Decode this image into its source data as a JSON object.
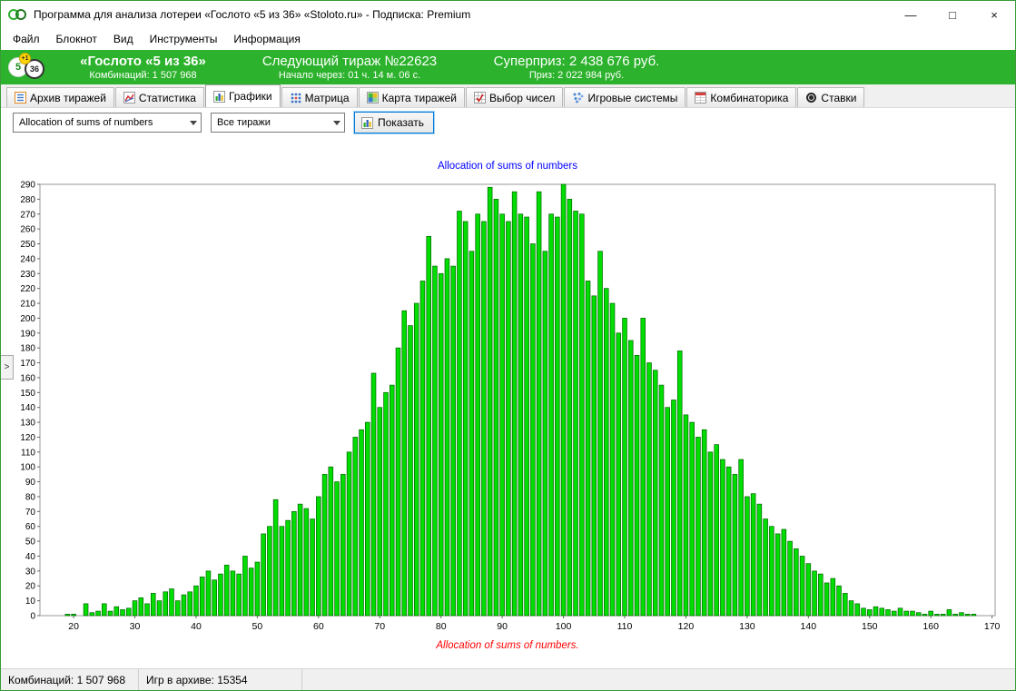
{
  "window": {
    "title": "Программа для анализа лотереи «Гослото «5 из 36» «Stoloto.ru» - Подписка: Premium",
    "controls": {
      "minimize": "—",
      "maximize": "□",
      "close": "×"
    }
  },
  "menubar": {
    "items": [
      "Файл",
      "Блокнот",
      "Вид",
      "Инструменты",
      "Информация"
    ]
  },
  "banner": {
    "logo": {
      "ball1": "5",
      "ball2": "36",
      "badge": "+1"
    },
    "title": "«Гослото «5 из 36»",
    "combinations": "Комбинаций: 1 507 968",
    "next_draw": "Следующий тираж №22623",
    "countdown": "Начало через: 01 ч. 14 м. 06 с.",
    "superprize": "Суперприз: 2 438 676 руб.",
    "prize": "Приз: 2 022 984 руб.",
    "background_color": "#2cb22c"
  },
  "tabs": {
    "active": "Графики",
    "items": [
      {
        "label": "Архив тиражей"
      },
      {
        "label": "Статистика"
      },
      {
        "label": "Графики"
      },
      {
        "label": "Матрица"
      },
      {
        "label": "Карта тиражей"
      },
      {
        "label": "Выбор чисел"
      },
      {
        "label": "Игровые системы"
      },
      {
        "label": "Комбинаторика"
      },
      {
        "label": "Ставки"
      }
    ]
  },
  "controls": {
    "chart_type_value": "Allocation of sums of numbers",
    "draws_filter_value": "Все тиражи",
    "show_button": "Показать"
  },
  "side_panel": {
    "toggle": ">"
  },
  "chart_data": {
    "type": "bar",
    "title": "Allocation of sums of numbers",
    "xlabel": "Allocation of sums of numbers.",
    "ylabel": "",
    "title_color": "#0000ff",
    "xlabel_color": "#ff0000",
    "bar_color": "#00dd00",
    "bar_border": "#006600",
    "x_start": 15,
    "x_end": 170,
    "x_tick_start": 20,
    "x_tick_step": 10,
    "ylim": [
      0,
      290
    ],
    "y_tick_step": 10,
    "grid": false,
    "legend": "none",
    "values": [
      0,
      0,
      0,
      0,
      1,
      1,
      0,
      8,
      2,
      3,
      8,
      3,
      6,
      4,
      5,
      10,
      12,
      8,
      15,
      10,
      16,
      18,
      10,
      14,
      16,
      20,
      26,
      30,
      24,
      28,
      34,
      30,
      28,
      40,
      32,
      36,
      55,
      60,
      78,
      60,
      64,
      70,
      75,
      72,
      65,
      80,
      95,
      100,
      90,
      95,
      110,
      120,
      125,
      130,
      163,
      140,
      150,
      155,
      180,
      205,
      195,
      210,
      225,
      255,
      235,
      230,
      240,
      235,
      272,
      265,
      245,
      270,
      265,
      288,
      280,
      270,
      265,
      285,
      270,
      268,
      250,
      285,
      245,
      270,
      268,
      290,
      280,
      272,
      270,
      225,
      215,
      245,
      220,
      210,
      190,
      200,
      185,
      175,
      200,
      170,
      165,
      155,
      140,
      145,
      178,
      135,
      130,
      120,
      125,
      110,
      115,
      105,
      100,
      95,
      105,
      80,
      82,
      75,
      65,
      60,
      55,
      58,
      50,
      45,
      40,
      35,
      30,
      28,
      22,
      25,
      20,
      15,
      10,
      8,
      5,
      4,
      6,
      5,
      4,
      3,
      5,
      3,
      3,
      2,
      1,
      3,
      1,
      1,
      4,
      1,
      2,
      1,
      1,
      0,
      0,
      0
    ]
  },
  "statusbar": {
    "combinations": "Комбинаций: 1 507 968",
    "games_in_archive": "Игр в архиве: 15354"
  }
}
